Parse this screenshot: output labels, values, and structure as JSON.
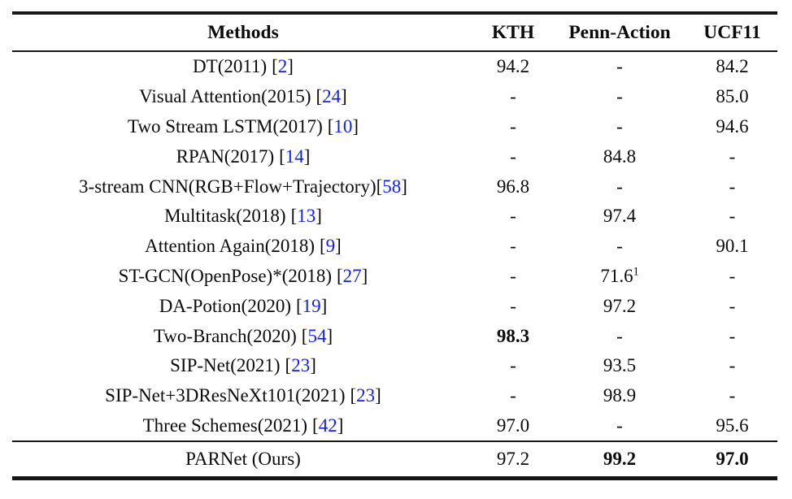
{
  "page": {
    "background": "#ffffff",
    "text_color": "#0b0b0b",
    "rule_color": "#161616",
    "citation_color": "#1420ee"
  },
  "table": {
    "headers": [
      "Methods",
      "KTH",
      "Penn-Action",
      "UCF11"
    ],
    "citation_brackets": [
      "[",
      "]"
    ],
    "rows": [
      {
        "method": "DT(2011)",
        "cite": "2",
        "kth": {
          "v": "94.2"
        },
        "penn": {
          "v": "-"
        },
        "ucf": {
          "v": "84.2"
        }
      },
      {
        "method": "Visual Attention(2015)",
        "cite": "24",
        "kth": {
          "v": "-"
        },
        "penn": {
          "v": "-"
        },
        "ucf": {
          "v": "85.0"
        }
      },
      {
        "method": "Two Stream LSTM(2017)",
        "cite": "10",
        "kth": {
          "v": "-"
        },
        "penn": {
          "v": "-"
        },
        "ucf": {
          "v": "94.6"
        }
      },
      {
        "method": "RPAN(2017)",
        "cite": "14",
        "kth": {
          "v": "-"
        },
        "penn": {
          "v": "84.8"
        },
        "ucf": {
          "v": "-"
        }
      },
      {
        "method": "3-stream CNN(RGB+Flow+Trajectory)",
        "cite": "58",
        "tight": true,
        "kth": {
          "v": "96.8"
        },
        "penn": {
          "v": "-"
        },
        "ucf": {
          "v": "-"
        }
      },
      {
        "method": "Multitask(2018)",
        "cite": "13",
        "kth": {
          "v": "-"
        },
        "penn": {
          "v": "97.4"
        },
        "ucf": {
          "v": "-"
        }
      },
      {
        "method": "Attention Again(2018)",
        "cite": "9",
        "kth": {
          "v": "-"
        },
        "penn": {
          "v": "-"
        },
        "ucf": {
          "v": "90.1"
        }
      },
      {
        "method": "ST-GCN(OpenPose)*(2018)",
        "cite": "27",
        "kth": {
          "v": "-"
        },
        "penn": {
          "v": "71.6",
          "sup": "1"
        },
        "ucf": {
          "v": "-"
        }
      },
      {
        "method": "DA-Potion(2020)",
        "cite": "19",
        "kth": {
          "v": "-"
        },
        "penn": {
          "v": "97.2"
        },
        "ucf": {
          "v": "-"
        }
      },
      {
        "method": "Two-Branch(2020)",
        "cite": "54",
        "kth": {
          "v": "98.3",
          "bold": true
        },
        "penn": {
          "v": "-"
        },
        "ucf": {
          "v": "-"
        }
      },
      {
        "method": "SIP-Net(2021)",
        "cite": "23",
        "kth": {
          "v": "-"
        },
        "penn": {
          "v": "93.5"
        },
        "ucf": {
          "v": "-"
        }
      },
      {
        "method": "SIP-Net+3DResNeXt101(2021)",
        "cite": "23",
        "kth": {
          "v": "-"
        },
        "penn": {
          "v": "98.9"
        },
        "ucf": {
          "v": "-"
        }
      },
      {
        "method": "Three Schemes(2021)",
        "cite": "42",
        "kth": {
          "v": "97.0"
        },
        "penn": {
          "v": "-"
        },
        "ucf": {
          "v": "95.6"
        }
      }
    ],
    "footer": {
      "method": "PARNet (Ours)",
      "kth": {
        "v": "97.2"
      },
      "penn": {
        "v": "99.2",
        "bold": true
      },
      "ucf": {
        "v": "97.0",
        "bold": true
      }
    }
  }
}
